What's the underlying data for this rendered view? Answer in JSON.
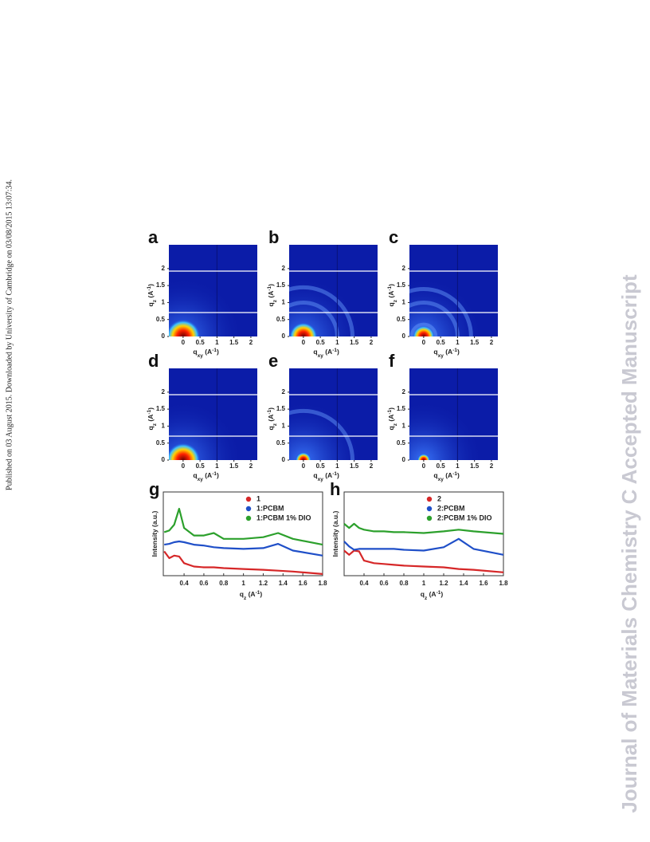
{
  "side_note": "Published on 03 August 2015. Downloaded by University of Cambridge on 03/08/2015 13:07:34.",
  "watermark": "Journal of Materials Chemistry C Accepted Manuscript",
  "chart_data": [
    {
      "type": "heatmap",
      "panel_label": "a",
      "xlim": [
        -0.42,
        2.19
      ],
      "ylim": [
        0,
        2.7
      ],
      "xticks": [
        0,
        0.5,
        1,
        1.5,
        2
      ],
      "yticks": [
        0,
        0.5,
        1,
        1.5,
        2
      ],
      "x_label": [
        "q",
        "xy",
        " (A",
        "-1",
        ")"
      ],
      "y_label": [
        "q",
        "z",
        " (A",
        "-1",
        ")"
      ]
    },
    {
      "type": "heatmap",
      "panel_label": "b",
      "xlim": [
        -0.42,
        2.19
      ],
      "ylim": [
        0,
        2.7
      ],
      "xticks": [
        0,
        0.5,
        1,
        1.5,
        2
      ],
      "yticks": [
        0,
        0.5,
        1,
        1.5,
        2
      ],
      "x_label": [
        "q",
        "xy",
        " (A",
        "-1",
        ")"
      ],
      "y_label": [
        "q",
        "z",
        " (A",
        "-1",
        ")"
      ]
    },
    {
      "type": "heatmap",
      "panel_label": "c",
      "xlim": [
        -0.42,
        2.19
      ],
      "ylim": [
        0,
        2.7
      ],
      "xticks": [
        0,
        0.5,
        1,
        1.5,
        2
      ],
      "yticks": [
        0,
        0.5,
        1,
        1.5,
        2
      ],
      "x_label": [
        "q",
        "xy",
        " (A",
        "-1",
        ")"
      ],
      "y_label": [
        "q",
        "z",
        " (A",
        "-1",
        ")"
      ]
    },
    {
      "type": "heatmap",
      "panel_label": "d",
      "xlim": [
        -0.42,
        2.19
      ],
      "ylim": [
        0,
        2.7
      ],
      "xticks": [
        0,
        0.5,
        1,
        1.5,
        2
      ],
      "yticks": [
        0,
        0.5,
        1,
        1.5,
        2
      ],
      "x_label": [
        "q",
        "xy",
        " (A",
        "-1",
        ")"
      ],
      "y_label": [
        "q",
        "z",
        " (A",
        "-1",
        ")"
      ]
    },
    {
      "type": "heatmap",
      "panel_label": "e",
      "xlim": [
        -0.42,
        2.19
      ],
      "ylim": [
        0,
        2.7
      ],
      "xticks": [
        0,
        0.5,
        1,
        1.5,
        2
      ],
      "yticks": [
        0,
        0.5,
        1,
        1.5,
        2
      ],
      "x_label": [
        "q",
        "xy",
        " (A",
        "-1",
        ")"
      ],
      "y_label": [
        "q",
        "z",
        " (A",
        "-1",
        ")"
      ]
    },
    {
      "type": "heatmap",
      "panel_label": "f",
      "xlim": [
        -0.42,
        2.19
      ],
      "ylim": [
        0,
        2.7
      ],
      "xticks": [
        0,
        0.5,
        1,
        1.5,
        2
      ],
      "yticks": [
        0,
        0.5,
        1,
        1.5,
        2
      ],
      "x_label": [
        "q",
        "xy",
        " (A",
        "-1",
        ")"
      ],
      "y_label": [
        "q",
        "z",
        " (A",
        "-1",
        ")"
      ]
    },
    {
      "type": "line",
      "panel_label": "g",
      "xlim": [
        0.19,
        1.8
      ],
      "ylim": [
        0,
        10
      ],
      "xticks": [
        0.4,
        0.6,
        0.8,
        1.0,
        1.2,
        1.4,
        1.6,
        1.8
      ],
      "x_label": [
        "q",
        "z",
        " (A",
        "-1",
        ")"
      ],
      "y_label": "Intensity (a.u.)",
      "x": [
        0.2,
        0.25,
        0.3,
        0.35,
        0.4,
        0.5,
        0.6,
        0.7,
        0.8,
        1.0,
        1.2,
        1.35,
        1.5,
        1.8
      ],
      "series": [
        {
          "name": "1",
          "color": "#d62728",
          "values": [
            2.9,
            2.1,
            2.4,
            2.3,
            1.5,
            1.1,
            1.0,
            1.0,
            0.9,
            0.8,
            0.7,
            0.6,
            0.5,
            0.2
          ]
        },
        {
          "name": "1:PCBM",
          "color": "#1f4fc8",
          "values": [
            3.7,
            3.8,
            4.0,
            4.1,
            4.0,
            3.7,
            3.6,
            3.4,
            3.3,
            3.2,
            3.3,
            3.8,
            3.0,
            2.4
          ]
        },
        {
          "name": "1:PCBM 1% DIO",
          "color": "#2ca02c",
          "values": [
            5.2,
            5.4,
            6.1,
            8.0,
            5.7,
            4.8,
            4.8,
            5.1,
            4.4,
            4.4,
            4.6,
            5.1,
            4.4,
            3.7
          ]
        }
      ]
    },
    {
      "type": "line",
      "panel_label": "h",
      "xlim": [
        0.2,
        1.8
      ],
      "ylim": [
        0,
        10
      ],
      "xticks": [
        0.4,
        0.6,
        0.8,
        1.0,
        1.2,
        1.4,
        1.6,
        1.8
      ],
      "x_label": [
        "q",
        "z",
        " (A",
        "-1",
        ")"
      ],
      "y_label": "Intensity (a.u.)",
      "x": [
        0.2,
        0.25,
        0.3,
        0.35,
        0.4,
        0.5,
        0.6,
        0.7,
        0.8,
        1.0,
        1.2,
        1.35,
        1.5,
        1.8
      ],
      "series": [
        {
          "name": "2",
          "color": "#d62728",
          "values": [
            3.0,
            2.5,
            3.0,
            2.9,
            1.8,
            1.5,
            1.4,
            1.3,
            1.2,
            1.1,
            1.0,
            0.8,
            0.7,
            0.4
          ]
        },
        {
          "name": "2:PCBM",
          "color": "#1f4fc8",
          "values": [
            4.1,
            3.5,
            3.1,
            3.2,
            3.2,
            3.2,
            3.2,
            3.2,
            3.1,
            3.0,
            3.4,
            4.4,
            3.2,
            2.5
          ]
        },
        {
          "name": "2:PCBM 1% DIO",
          "color": "#2ca02c",
          "values": [
            6.2,
            5.7,
            6.2,
            5.7,
            5.5,
            5.3,
            5.3,
            5.2,
            5.2,
            5.1,
            5.3,
            5.5,
            5.3,
            5.0
          ]
        }
      ]
    }
  ]
}
